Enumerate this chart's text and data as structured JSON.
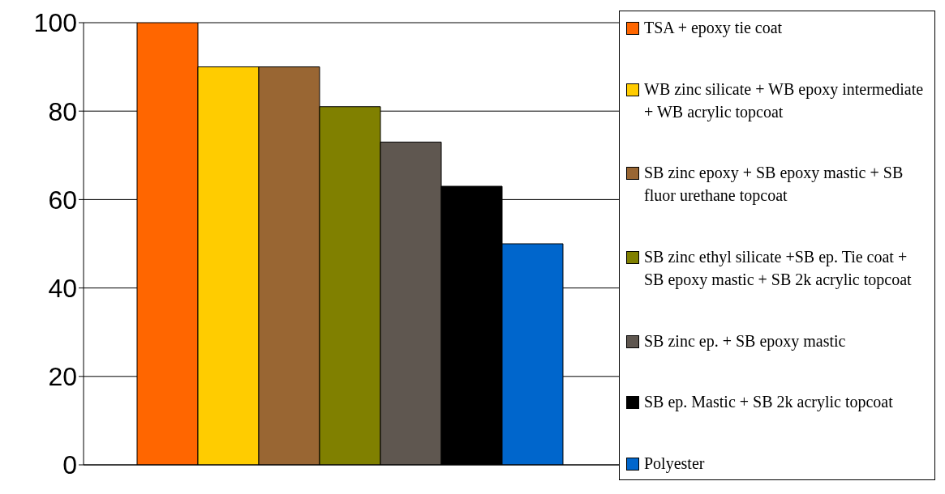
{
  "chart_data": {
    "type": "bar",
    "categories": [
      null
    ],
    "series": [
      {
        "name": "TSA + epoxy tie coat",
        "color": "#ff6600",
        "values": [
          100
        ]
      },
      {
        "name": "WB zinc silicate + WB epoxy intermediate + WB acrylic topcoat",
        "color": "#ffcc00",
        "values": [
          90
        ]
      },
      {
        "name": "SB zinc epoxy + SB epoxy mastic + SB fluor urethane topcoat",
        "color": "#996633",
        "values": [
          90
        ]
      },
      {
        "name": "SB zinc ethyl silicate +SB ep. Tie coat + SB epoxy mastic + SB 2k acrylic topcoat",
        "color": "#808000",
        "values": [
          81
        ]
      },
      {
        "name": "SB zinc ep. + SB epoxy mastic",
        "color": "#5f5750",
        "values": [
          73
        ]
      },
      {
        "name": "SB ep. Mastic + SB 2k acrylic topcoat",
        "color": "#000000",
        "values": [
          63
        ]
      },
      {
        "name": "Polyester",
        "color": "#0066cc",
        "values": [
          50
        ]
      }
    ],
    "ylim": [
      0,
      100
    ],
    "yticks": [
      0,
      20,
      40,
      60,
      80,
      100
    ],
    "grid": "y",
    "legend": "right"
  }
}
